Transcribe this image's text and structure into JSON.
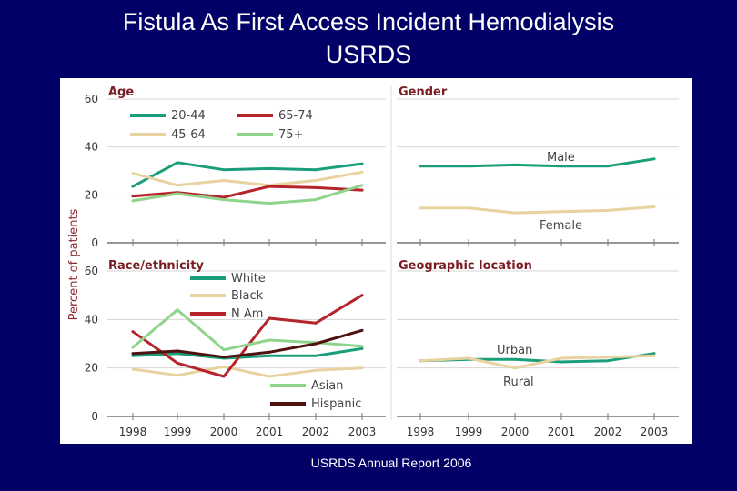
{
  "slide": {
    "title_line1": "Fistula As First Access Incident Hemodialysis",
    "title_line2": "USRDS",
    "footer": "USRDS Annual Report 2006"
  },
  "shared": {
    "ylabel": "Percent of patients",
    "years": [
      "1998",
      "1999",
      "2000",
      "2001",
      "2002",
      "2003"
    ]
  },
  "chart_data": [
    {
      "type": "line",
      "title": "Age",
      "categories": [
        "1998",
        "1999",
        "2000",
        "2001",
        "2002",
        "2003"
      ],
      "ylim": [
        0,
        60
      ],
      "yticks": [
        "0",
        "20",
        "40",
        "60"
      ],
      "legend": "top-left",
      "series": [
        {
          "name": "20-44",
          "color": "#1a9e7a",
          "values": [
            23.5,
            33.5,
            30.5,
            31,
            30.5,
            33
          ]
        },
        {
          "name": "45-64",
          "color": "#e8d3a0",
          "values": [
            29,
            24,
            26,
            24,
            26,
            29.5
          ]
        },
        {
          "name": "65-74",
          "color": "#b5232b",
          "values": [
            19.5,
            21,
            19,
            23.5,
            23,
            22
          ]
        },
        {
          "name": "75+",
          "color": "#8fd48a",
          "values": [
            17.5,
            20.5,
            18,
            16.5,
            18,
            24
          ]
        }
      ]
    },
    {
      "type": "line",
      "title": "Gender",
      "categories": [
        "1998",
        "1999",
        "2000",
        "2001",
        "2002",
        "2003"
      ],
      "ylim": [
        0,
        60
      ],
      "series": [
        {
          "name": "Male",
          "color": "#1a9e7a",
          "values": [
            32,
            32,
            32.5,
            32,
            32,
            35
          ]
        },
        {
          "name": "Female",
          "color": "#e8d3a0",
          "values": [
            14.5,
            14.5,
            12.5,
            13,
            13.5,
            15
          ]
        }
      ]
    },
    {
      "type": "line",
      "title": "Race/ethnicity",
      "categories": [
        "1998",
        "1999",
        "2000",
        "2001",
        "2002",
        "2003"
      ],
      "ylim": [
        0,
        60
      ],
      "yticks": [
        "0",
        "20",
        "40",
        "60"
      ],
      "legend": "top and bottom",
      "series": [
        {
          "name": "White",
          "color": "#1a9e7a",
          "values": [
            25,
            26,
            24,
            25,
            25,
            28
          ]
        },
        {
          "name": "Black",
          "color": "#e8d3a0",
          "values": [
            19.5,
            17,
            20.5,
            16.5,
            19,
            20
          ]
        },
        {
          "name": "N Am",
          "color": "#b5232b",
          "values": [
            35,
            22,
            16.5,
            40.5,
            38.5,
            50
          ]
        },
        {
          "name": "Asian",
          "color": "#8fd48a",
          "values": [
            28.5,
            44,
            27.5,
            31.5,
            30.5,
            29
          ]
        },
        {
          "name": "Hispanic",
          "color": "#4d1110",
          "values": [
            26,
            27,
            24.5,
            26.5,
            30,
            35.5
          ]
        }
      ]
    },
    {
      "type": "line",
      "title": "Geographic location",
      "categories": [
        "1998",
        "1999",
        "2000",
        "2001",
        "2002",
        "2003"
      ],
      "ylim": [
        0,
        60
      ],
      "series": [
        {
          "name": "Urban",
          "color": "#1a9e7a",
          "values": [
            23,
            23.5,
            23.5,
            22.5,
            23,
            26
          ]
        },
        {
          "name": "Rural",
          "color": "#e8d3a0",
          "values": [
            23,
            24,
            20,
            24,
            24.5,
            25
          ]
        }
      ]
    }
  ]
}
